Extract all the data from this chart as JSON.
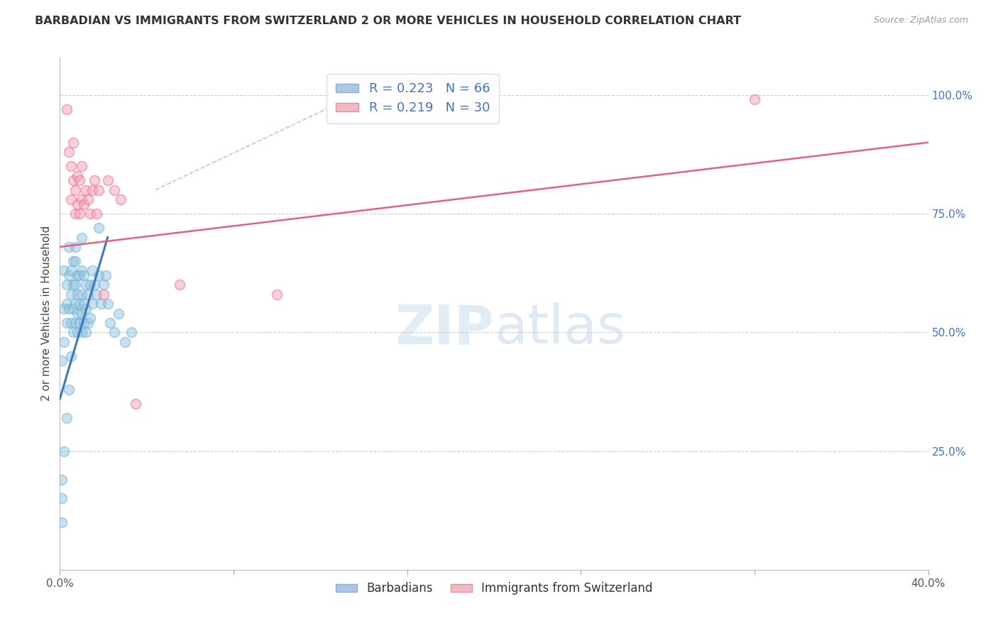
{
  "title": "BARBADIAN VS IMMIGRANTS FROM SWITZERLAND 2 OR MORE VEHICLES IN HOUSEHOLD CORRELATION CHART",
  "source": "Source: ZipAtlas.com",
  "ylabel": "2 or more Vehicles in Household",
  "xmin": 0.0,
  "xmax": 0.4,
  "ymin": 0.0,
  "ymax": 1.08,
  "barbadian_color": "#92c5de",
  "barbadian_edge": "#6baed6",
  "swiss_color": "#f7a8b8",
  "swiss_edge": "#e87090",
  "blue_line_color": "#3a7abf",
  "pink_line_color": "#e8607a",
  "dashed_line_color": "#aacfe8",
  "watermark": "ZIPatlas",
  "barbadians_x": [
    0.001,
    0.001,
    0.002,
    0.002,
    0.002,
    0.003,
    0.003,
    0.003,
    0.004,
    0.004,
    0.004,
    0.005,
    0.005,
    0.005,
    0.006,
    0.006,
    0.006,
    0.006,
    0.007,
    0.007,
    0.007,
    0.007,
    0.008,
    0.008,
    0.008,
    0.008,
    0.009,
    0.009,
    0.009,
    0.01,
    0.01,
    0.01,
    0.01,
    0.011,
    0.011,
    0.011,
    0.012,
    0.012,
    0.012,
    0.013,
    0.013,
    0.014,
    0.014,
    0.015,
    0.015,
    0.016,
    0.017,
    0.018,
    0.019,
    0.02,
    0.021,
    0.022,
    0.023,
    0.025,
    0.027,
    0.03,
    0.033,
    0.001,
    0.001,
    0.002,
    0.003,
    0.004,
    0.005,
    0.007,
    0.01,
    0.018
  ],
  "barbadians_y": [
    0.19,
    0.44,
    0.48,
    0.55,
    0.63,
    0.52,
    0.56,
    0.6,
    0.55,
    0.62,
    0.68,
    0.52,
    0.58,
    0.63,
    0.5,
    0.55,
    0.6,
    0.65,
    0.52,
    0.56,
    0.6,
    0.65,
    0.5,
    0.54,
    0.58,
    0.62,
    0.52,
    0.56,
    0.62,
    0.5,
    0.54,
    0.58,
    0.63,
    0.52,
    0.56,
    0.62,
    0.5,
    0.55,
    0.6,
    0.52,
    0.58,
    0.53,
    0.6,
    0.56,
    0.63,
    0.6,
    0.58,
    0.62,
    0.56,
    0.6,
    0.62,
    0.56,
    0.52,
    0.5,
    0.54,
    0.48,
    0.5,
    0.1,
    0.15,
    0.25,
    0.32,
    0.38,
    0.45,
    0.68,
    0.7,
    0.72
  ],
  "swiss_x": [
    0.003,
    0.004,
    0.005,
    0.005,
    0.006,
    0.006,
    0.007,
    0.007,
    0.008,
    0.008,
    0.009,
    0.009,
    0.01,
    0.01,
    0.011,
    0.012,
    0.013,
    0.014,
    0.015,
    0.016,
    0.017,
    0.018,
    0.02,
    0.022,
    0.025,
    0.028,
    0.035,
    0.055,
    0.1,
    0.32
  ],
  "swiss_y": [
    0.97,
    0.88,
    0.78,
    0.85,
    0.82,
    0.9,
    0.75,
    0.8,
    0.77,
    0.83,
    0.75,
    0.82,
    0.78,
    0.85,
    0.77,
    0.8,
    0.78,
    0.75,
    0.8,
    0.82,
    0.75,
    0.8,
    0.58,
    0.82,
    0.8,
    0.78,
    0.35,
    0.6,
    0.58,
    0.99
  ],
  "blue_trend_x": [
    0.0,
    0.022
  ],
  "blue_trend_y": [
    0.36,
    0.7
  ],
  "pink_trend_x": [
    0.0,
    0.4
  ],
  "pink_trend_y": [
    0.68,
    0.9
  ],
  "dashed_trend_x": [
    0.044,
    0.155
  ],
  "dashed_trend_y": [
    0.8,
    1.04
  ]
}
